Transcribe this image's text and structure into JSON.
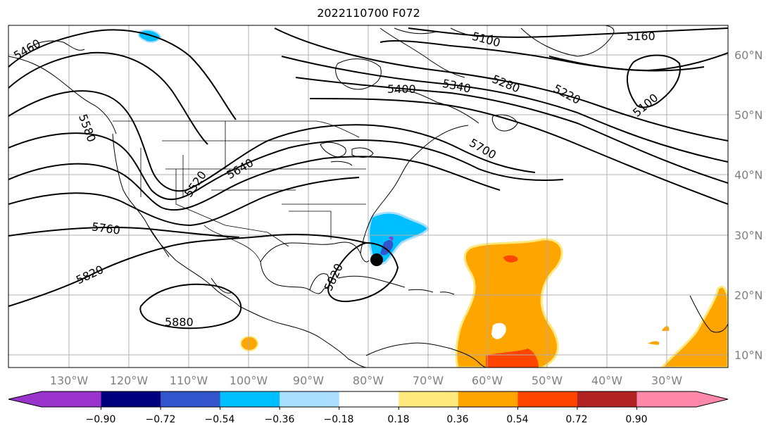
{
  "title": "2022110700 F072",
  "map": {
    "lon_labels": [
      "130°W",
      "120°W",
      "110°W",
      "100°W",
      "90°W",
      "80°W",
      "70°W",
      "60°W",
      "50°W",
      "40°W",
      "30°W"
    ],
    "lat_labels": [
      "60°N",
      "50°N",
      "40°N",
      "30°N",
      "20°N",
      "10°N"
    ],
    "contour_labels": [
      "5460",
      "5580",
      "5520",
      "5640",
      "5760",
      "5820",
      "5880",
      "5820",
      "5400",
      "5340",
      "5280",
      "5220",
      "5100",
      "5160",
      "5100",
      "5700"
    ],
    "marker": "storm-center-marker"
  },
  "colorbar": {
    "ticks": [
      "−0.90",
      "−0.72",
      "−0.54",
      "−0.36",
      "−0.18",
      "0.18",
      "0.36",
      "0.54",
      "0.72",
      "0.90"
    ],
    "colors": [
      "#9933cc",
      "#00007f",
      "#3355cc",
      "#00bfff",
      "#aadfff",
      "#ffffff",
      "#ffe87c",
      "#ffa500",
      "#ff4500",
      "#b22222",
      "#ff88aa"
    ],
    "under_color": "#9933cc",
    "over_color": "#ff88aa"
  }
}
